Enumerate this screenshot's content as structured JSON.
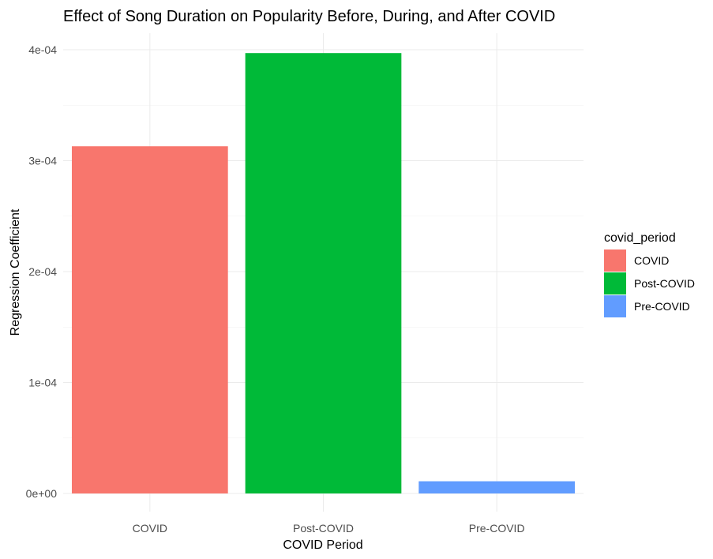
{
  "chart_data": {
    "type": "bar",
    "title": "Effect of Song Duration on Popularity Before, During, and After COVID",
    "xlabel": "COVID Period",
    "ylabel": "Regression Coefficient",
    "categories": [
      "COVID",
      "Post-COVID",
      "Pre-COVID"
    ],
    "values": [
      0.000313,
      0.000397,
      1.1e-05
    ],
    "colors": [
      "#F8766D",
      "#00BA38",
      "#619CFF"
    ],
    "ylim": [
      0,
      0.0004
    ],
    "yticks": [
      0,
      0.0001,
      0.0002,
      0.0003,
      0.0004
    ],
    "ytick_labels": [
      "0e+00",
      "1e-04",
      "2e-04",
      "3e-04",
      "4e-04"
    ],
    "grid": true,
    "legend": {
      "title": "covid_period",
      "entries": [
        "COVID",
        "Post-COVID",
        "Pre-COVID"
      ],
      "placement": "right"
    }
  }
}
